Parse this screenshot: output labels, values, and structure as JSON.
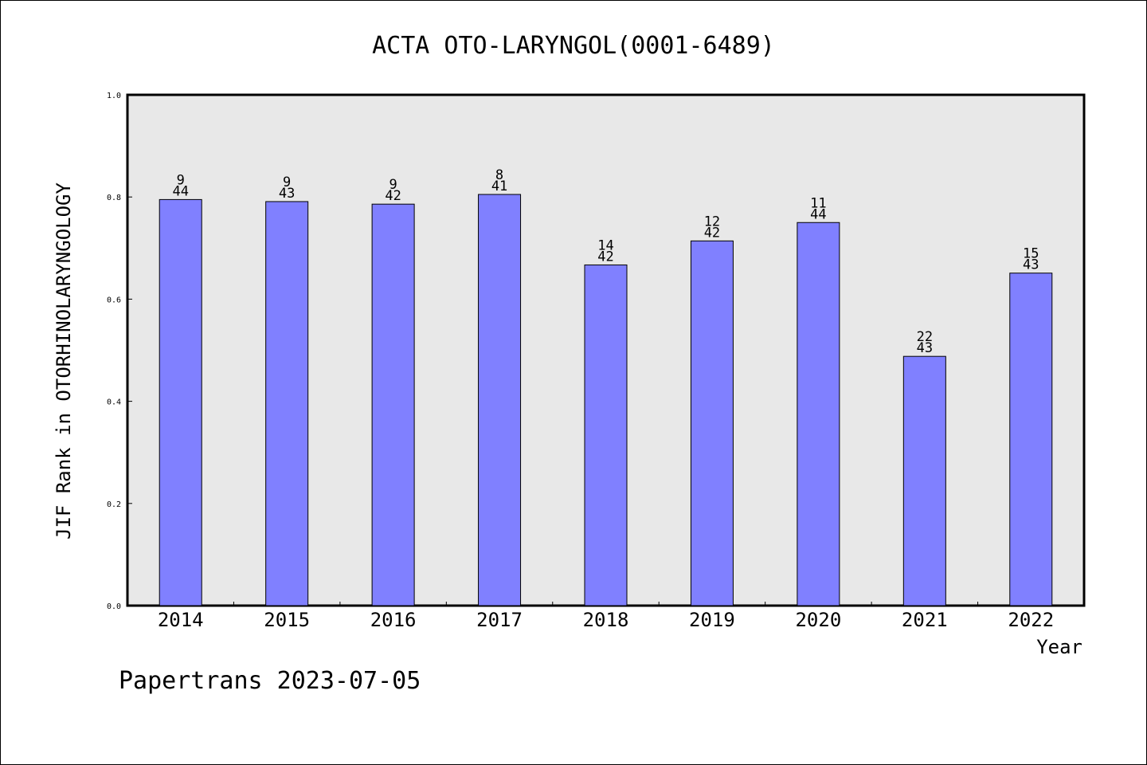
{
  "chart_data": {
    "type": "bar",
    "title": "ACTA OTO-LARYNGOL(0001-6489)",
    "xlabel": "Year",
    "ylabel": "JIF Rank in OTORHINOLARYNGOLOGY",
    "ylim": [
      0,
      1.0
    ],
    "yticks": [
      "0.0",
      "0.2",
      "0.4",
      "0.6",
      "0.8",
      "1.0"
    ],
    "ytick_values": [
      0,
      0.2,
      0.4,
      0.6,
      0.8,
      1.0
    ],
    "categories": [
      "2014",
      "2015",
      "2016",
      "2017",
      "2018",
      "2019",
      "2020",
      "2021",
      "2022"
    ],
    "values": [
      0.795,
      0.791,
      0.786,
      0.805,
      0.667,
      0.714,
      0.75,
      0.488,
      0.651
    ],
    "ranks": [
      "9",
      "9",
      "9",
      "8",
      "14",
      "12",
      "11",
      "22",
      "15"
    ],
    "totals": [
      "44",
      "43",
      "42",
      "41",
      "42",
      "42",
      "44",
      "43",
      "43"
    ],
    "bar_color": "#8080ff",
    "plot_background": "#e8e8e8",
    "grid": false
  },
  "footer": "Papertrans 2023-07-05"
}
